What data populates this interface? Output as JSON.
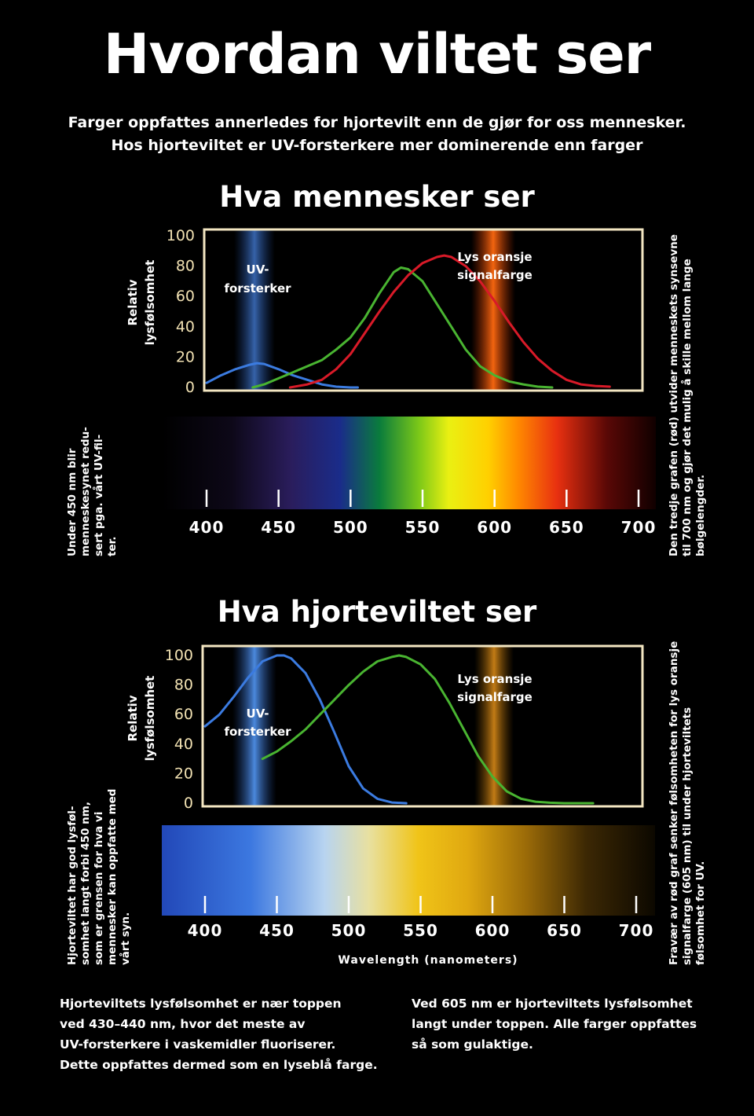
{
  "title": "Hvordan viltet ser",
  "subtitle": [
    "Farger oppfattes annerledes for hjortevilt enn de gjør for oss mennesker.",
    "Hos hjorteviltet er UV-forsterkere mer dominerende enn farger"
  ],
  "colors": {
    "blue": "#3b7be0",
    "green": "#49b431",
    "red": "#d81a28",
    "frame": "#f3e6c2",
    "tick_label": "#f1e1b2"
  },
  "chart_data": [
    {
      "type": "line",
      "title": "Hva mennesker ser",
      "ylabel": [
        "Relativ",
        "lysfølsomhet"
      ],
      "xlabel": "",
      "ylim": [
        0,
        100
      ],
      "xlim": [
        400,
        700
      ],
      "yticks": [
        "100",
        "80",
        "60",
        "40",
        "20",
        "0"
      ],
      "xticks": [
        "400",
        "450",
        "500",
        "550",
        "600",
        "650",
        "700"
      ],
      "band_labels": {
        "uv": [
          "UV-",
          "forsterker"
        ],
        "orange": [
          "Lys oransje",
          "signalfarge"
        ]
      },
      "series": [
        {
          "color": "blue",
          "x": [
            400,
            410,
            420,
            430,
            435,
            440,
            450,
            460,
            470,
            480,
            490,
            500,
            505
          ],
          "y": [
            3,
            8,
            12,
            15,
            16,
            15.5,
            12,
            8,
            5,
            2,
            0.5,
            0,
            0
          ]
        },
        {
          "color": "green",
          "x": [
            432,
            440,
            450,
            460,
            470,
            480,
            490,
            500,
            510,
            520,
            530,
            535,
            540,
            550,
            560,
            570,
            580,
            590,
            600,
            610,
            620,
            630,
            640
          ],
          "y": [
            0,
            2,
            6,
            10,
            14,
            18,
            25,
            33,
            46,
            62,
            76,
            79,
            78,
            70,
            55,
            40,
            25,
            14,
            8,
            4,
            2,
            0.5,
            0
          ]
        },
        {
          "color": "red",
          "x": [
            458,
            470,
            480,
            490,
            500,
            510,
            520,
            530,
            540,
            550,
            560,
            565,
            570,
            580,
            590,
            600,
            610,
            620,
            630,
            640,
            650,
            660,
            670,
            680
          ],
          "y": [
            0,
            2,
            5,
            12,
            22,
            36,
            50,
            63,
            74,
            82,
            86,
            87,
            86,
            80,
            70,
            57,
            43,
            30,
            19,
            11,
            5,
            2,
            1,
            0.5
          ]
        }
      ]
    },
    {
      "type": "line",
      "title": "Hva hjorteviltet ser",
      "ylabel": [
        "Relativ",
        "lysfølsomhet"
      ],
      "xlabel": "Wavelength (nanometers)",
      "ylim": [
        0,
        100
      ],
      "xlim": [
        400,
        700
      ],
      "yticks": [
        "100",
        "80",
        "60",
        "40",
        "20",
        "0"
      ],
      "xticks": [
        "400",
        "450",
        "500",
        "550",
        "600",
        "650",
        "700"
      ],
      "band_labels": {
        "uv": [
          "UV-",
          "forsterker"
        ],
        "orange": [
          "Lys oransje",
          "signalfarge"
        ]
      },
      "series": [
        {
          "color": "blue",
          "x": [
            400,
            410,
            420,
            430,
            440,
            450,
            455,
            460,
            470,
            480,
            490,
            500,
            510,
            520,
            530,
            540
          ],
          "y": [
            52,
            60,
            72,
            85,
            96,
            100,
            100,
            98,
            88,
            70,
            48,
            25,
            10,
            3,
            0.5,
            0
          ]
        },
        {
          "color": "green",
          "x": [
            440,
            450,
            460,
            470,
            480,
            490,
            500,
            510,
            520,
            530,
            535,
            540,
            550,
            560,
            570,
            580,
            590,
            600,
            610,
            620,
            630,
            640,
            650,
            660,
            670
          ],
          "y": [
            30,
            35,
            42,
            50,
            60,
            70,
            80,
            89,
            96,
            99,
            100,
            99,
            94,
            84,
            68,
            50,
            32,
            18,
            8,
            3,
            1,
            0.3,
            0,
            0,
            0
          ]
        }
      ]
    }
  ],
  "side_notes": {
    "human_left": [
      "Under 450 nm blir",
      "menneskesynet redu-",
      "sert pga. vårt UV-fil-",
      "ter."
    ],
    "human_right": [
      "Den tredje grafen (rød) utvider menneskets synsevne",
      "til 700 nm og gjør det mulig å skille mellom lange",
      "bølgelengder."
    ],
    "deer_left": [
      "Hjorteviltet har god lysføl-",
      "somhet langt forbi 450 nm,",
      "som er grensen for hva vi",
      "mennesker kan oppfatte med",
      "vårt syn."
    ],
    "deer_right": [
      "Fravær av rød graf senker følsomheten for lys oransje",
      "signalfarge (605 nm) til under hjorteviltets",
      "følsomhet for UV."
    ]
  },
  "bottom_notes": {
    "left": [
      "Hjorteviltets lysfølsomhet er nær toppen",
      "ved 430–440 nm, hvor det meste av",
      "UV-forsterkere i vaskemidler fluoriserer.",
      "Dette oppfattes dermed som en lyseblå farge."
    ],
    "right": [
      "Ved 605 nm er hjorteviltets lysfølsomhet",
      "langt under toppen. Alle farger oppfattes",
      "så som gulaktige."
    ]
  }
}
